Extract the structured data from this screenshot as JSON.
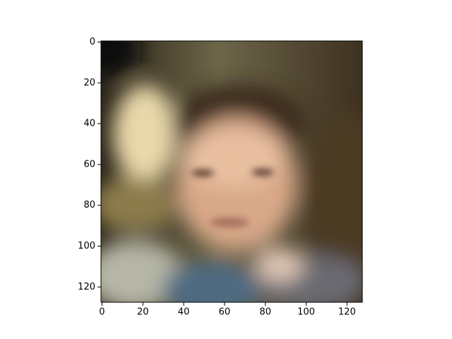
{
  "chart_data": {
    "type": "image",
    "xlim": [
      -0.5,
      127.5
    ],
    "ylim": [
      127.5,
      -0.5
    ],
    "xticks": [
      0,
      20,
      40,
      60,
      80,
      100,
      120
    ],
    "yticks": [
      0,
      20,
      40,
      60,
      80,
      100,
      120
    ]
  }
}
